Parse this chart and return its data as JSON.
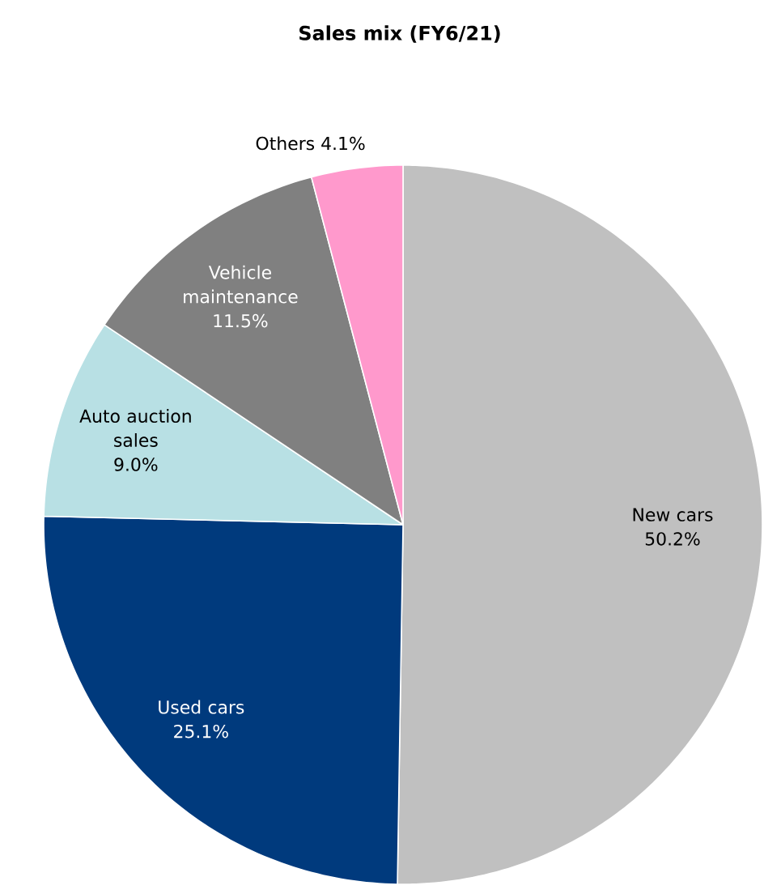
{
  "chart_data": {
    "type": "pie",
    "title": "Sales mix (FY6/21)",
    "categories": [
      "New cars",
      "Used cars",
      "Auto auction sales",
      "Vehicle maintenance",
      "Others"
    ],
    "values": [
      50.2,
      25.1,
      9.0,
      11.5,
      4.1
    ],
    "colors": [
      "#c0c0c0",
      "#003a7d",
      "#b8e0e4",
      "#808080",
      "#ff99cc"
    ],
    "value_labels": [
      "50.2%",
      "25.1%",
      "9.0%",
      "11.5%",
      "4.1%"
    ]
  }
}
